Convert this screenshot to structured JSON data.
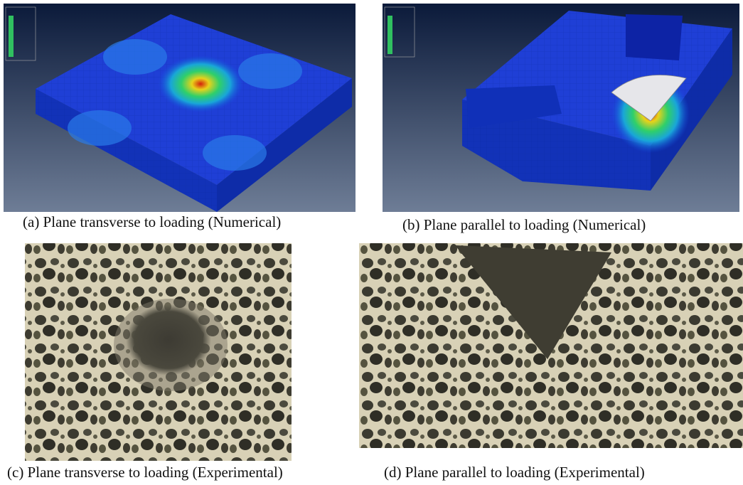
{
  "figure": {
    "panels": [
      {
        "caption": "(a) Plane transverse to loading (Numerical)"
      },
      {
        "caption": "(b) Plane parallel to loading (Numerical)"
      },
      {
        "caption": "(c) Plane transverse to loading (Experimental)"
      },
      {
        "caption": "(d) Plane parallel to loading (Experimental)"
      }
    ]
  }
}
